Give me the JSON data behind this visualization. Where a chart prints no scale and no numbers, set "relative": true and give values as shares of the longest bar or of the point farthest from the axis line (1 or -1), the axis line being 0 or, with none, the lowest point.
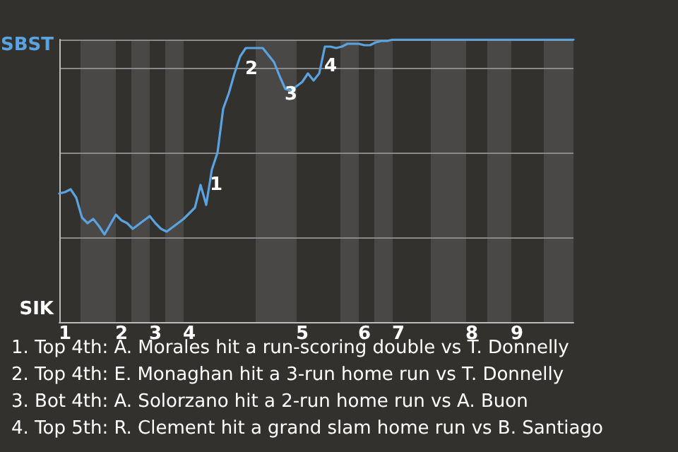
{
  "chart_data": {
    "type": "line",
    "relative": true,
    "categories": [
      null,
      "1",
      null,
      null,
      null,
      null,
      null,
      null,
      null,
      null,
      null,
      "2",
      null,
      null,
      null,
      null,
      null,
      "3",
      null,
      null,
      null,
      null,
      null,
      "4",
      null,
      null,
      null,
      null,
      null,
      null,
      null,
      null,
      null,
      null,
      null,
      null,
      null,
      null,
      null,
      null,
      null,
      null,
      null,
      "5",
      null,
      null,
      null,
      null,
      null,
      null,
      null,
      null,
      null,
      null,
      "6",
      null,
      null,
      null,
      null,
      null,
      "7",
      null,
      null,
      null,
      null,
      null,
      null,
      null,
      null,
      null,
      null,
      null,
      null,
      "8",
      null,
      null,
      null,
      null,
      null,
      null,
      null,
      "9",
      null,
      null,
      null,
      null,
      null,
      null,
      null,
      null,
      null,
      null
    ],
    "series": [
      {
        "color": "#5ba3e0",
        "values": [
          0.455,
          0.46,
          0.47,
          0.44,
          0.37,
          0.35,
          0.365,
          0.34,
          0.31,
          0.345,
          0.38,
          0.36,
          0.35,
          0.33,
          0.345,
          0.36,
          0.375,
          0.35,
          0.33,
          0.32,
          0.335,
          0.35,
          0.365,
          0.385,
          0.405,
          0.485,
          0.415,
          0.54,
          0.6,
          0.755,
          0.81,
          0.88,
          0.94,
          0.97,
          0.97,
          0.97,
          0.97,
          0.945,
          0.92,
          0.87,
          0.825,
          0.82,
          0.835,
          0.85,
          0.88,
          0.855,
          0.88,
          0.975,
          0.975,
          0.97,
          0.975,
          0.985,
          0.985,
          0.985,
          0.98,
          0.98,
          0.99,
          0.995,
          0.995,
          1,
          1,
          1,
          1,
          1,
          1,
          1,
          1,
          1,
          1,
          1,
          1,
          1,
          1,
          1,
          1,
          1,
          1,
          1,
          1,
          1,
          1,
          1,
          1,
          1,
          1,
          1,
          1,
          1,
          1,
          1,
          1,
          1
        ]
      }
    ],
    "grid": "y",
    "annotations": [
      "SBST",
      "SIK",
      "1",
      "2",
      "3",
      "4",
      "1. Top 4th: A. Morales hit a run-scoring double vs T. Donnelly",
      "2. Top 4th: E. Monaghan hit a 3-run home run vs T. Donnelly",
      "3. Bot 4th: A. Solorzano hit a 2-run home run vs A. Buon",
      "4. Top 5th: R. Clement hit a grand slam home run vs B. Santiago"
    ]
  }
}
